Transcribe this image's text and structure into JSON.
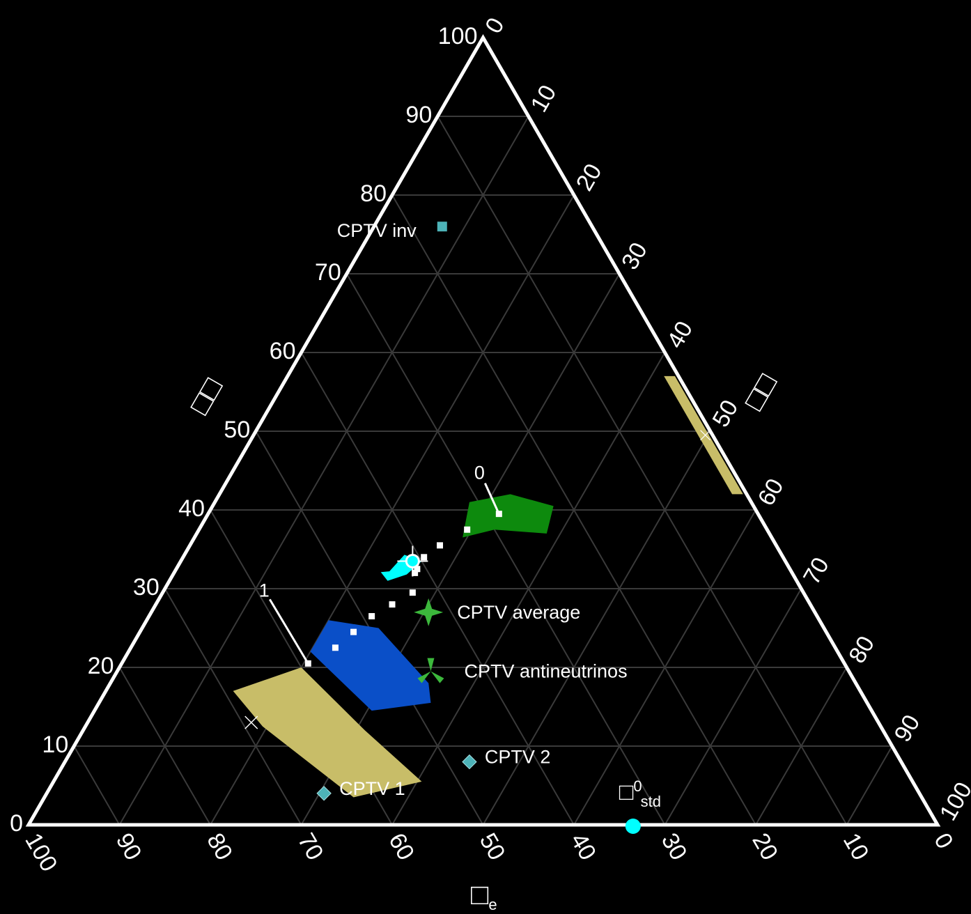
{
  "chart_data": {
    "type": "ternary",
    "title": "",
    "axes": {
      "left_label": "□□",
      "right_label": "□□",
      "bottom_label": "□",
      "bottom_label_subscript": "e",
      "range": [
        0,
        100
      ],
      "grid_step": 10,
      "grid": true,
      "left_ticks": [
        "0",
        "10",
        "20",
        "30",
        "40",
        "50",
        "60",
        "70",
        "80",
        "90",
        "100"
      ],
      "right_ticks": [
        "0",
        "10",
        "20",
        "30",
        "40",
        "50",
        "60",
        "70",
        "80",
        "90",
        "100"
      ],
      "bottom_ticks": [
        "100",
        "90",
        "80",
        "70",
        "60",
        "50",
        "40",
        "30",
        "20",
        "10",
        "0"
      ]
    },
    "colors": {
      "background": "#000000",
      "frame": "#ffffff",
      "grid": "#3a3a3a",
      "yellow_region": "#c8bd68",
      "blue_region": "#0a4fc8",
      "green_region": "#0d8a0d",
      "cyan": "#00ffff",
      "teal_marker": "#4db3b8",
      "green_star": "#3cb83c",
      "path_marker": "#ffffff"
    },
    "regions": [
      {
        "name": "yellow",
        "points": [
          [
            68,
            12.5
          ],
          [
            62.5,
            3.5
          ],
          [
            54,
            5.5
          ],
          [
            57,
            12
          ],
          [
            60,
            20
          ],
          [
            69,
            17
          ]
        ]
      },
      {
        "name": "blue",
        "points": [
          [
            58,
            22
          ],
          [
            55,
            14.5
          ],
          [
            48,
            15.5
          ],
          [
            47,
            18
          ],
          [
            49,
            25
          ],
          [
            54,
            26
          ]
        ]
      },
      {
        "name": "green",
        "points": [
          [
            34,
            36.5
          ],
          [
            30,
            37.5
          ],
          [
            24.5,
            37
          ],
          [
            22,
            40.5
          ],
          [
            26,
            42
          ],
          [
            31,
            41
          ]
        ]
      },
      {
        "name": "cyan",
        "points": [
          [
            45,
            31
          ],
          [
            45.2,
            32.1
          ],
          [
            44.2,
            32.2
          ],
          [
            41.5,
            34.3
          ],
          [
            40,
            33.5
          ],
          [
            42.5,
            31.8
          ]
        ]
      },
      {
        "name": "yellow-edge",
        "points": [
          [
            1.6,
            57
          ],
          [
            0.4,
            57
          ],
          [
            0.4,
            42
          ],
          [
            1.6,
            42
          ]
        ]
      }
    ],
    "path": {
      "points": [
        [
          59,
          20.5
        ],
        [
          55,
          22.5
        ],
        [
          52,
          24.5
        ],
        [
          49,
          26.5
        ],
        [
          46,
          28
        ],
        [
          43,
          29.5
        ],
        [
          41.5,
          32
        ],
        [
          41,
          32.5
        ],
        [
          39.5,
          34
        ],
        [
          37,
          35.5
        ],
        [
          33,
          37.5
        ],
        [
          28.5,
          39.5
        ]
      ],
      "label_start": "1",
      "label_end": "0"
    },
    "points": [
      {
        "label": "CPTV inv",
        "marker": "square",
        "x": 16.5,
        "y": 76
      },
      {
        "label": "CPTV 1",
        "marker": "diamond",
        "x": 65.5,
        "y": 4
      },
      {
        "label": "CPTV 2",
        "marker": "diamond",
        "x": 47.5,
        "y": 8
      },
      {
        "label": "CPTV average",
        "marker": "star4",
        "x": 42.5,
        "y": 27
      },
      {
        "label": "CPTV antineutrinos",
        "marker": "tristar",
        "x": 46,
        "y": 19.5
      },
      {
        "label": "□",
        "label_sup": "0",
        "label_sub": "std",
        "marker": "circle",
        "x": 33.5,
        "y": 0
      }
    ],
    "special_points": [
      {
        "name": "cyan-circle-cross",
        "x": 41,
        "y": 33.5
      },
      {
        "name": "yellow-x",
        "x": 69,
        "y": 13
      }
    ]
  }
}
